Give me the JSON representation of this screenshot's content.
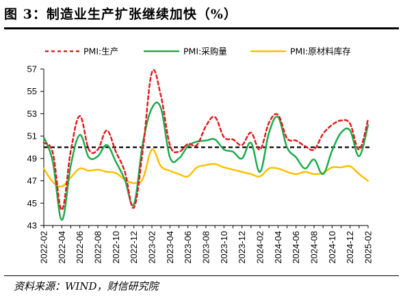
{
  "title": "图 3：制造业生产扩张继续加快（%）",
  "source": "资料来源：WIND，财信研究院",
  "chart_data": {
    "type": "line",
    "categories": [
      "2022-02",
      "2022-04",
      "2022-06",
      "2022-08",
      "2022-10",
      "2022-12",
      "2023-02",
      "2023-04",
      "2023-06",
      "2023-08",
      "2023-10",
      "2023-12",
      "2024-02",
      "2024-04",
      "2024-06",
      "2024-08",
      "2024-10",
      "2024-12",
      "2025-02"
    ],
    "x": [
      "2022-02",
      "2022-03",
      "2022-04",
      "2022-05",
      "2022-06",
      "2022-07",
      "2022-08",
      "2022-09",
      "2022-10",
      "2022-11",
      "2022-12",
      "2023-01",
      "2023-02",
      "2023-03",
      "2023-04",
      "2023-05",
      "2023-06",
      "2023-07",
      "2023-08",
      "2023-09",
      "2023-10",
      "2023-11",
      "2023-12",
      "2024-01",
      "2024-02",
      "2024-03",
      "2024-04",
      "2024-05",
      "2024-06",
      "2024-07",
      "2024-08",
      "2024-09",
      "2024-10",
      "2024-11",
      "2024-12",
      "2025-01",
      "2025-02"
    ],
    "series": [
      {
        "name": "PMI:生产",
        "color": "#e41a1c",
        "dash": "5,4",
        "values": [
          50.4,
          49.5,
          44.4,
          49.7,
          52.8,
          49.8,
          49.8,
          51.5,
          49.6,
          47.8,
          44.6,
          49.8,
          56.7,
          54.6,
          50.2,
          49.6,
          50.3,
          50.2,
          51.9,
          52.7,
          50.9,
          50.7,
          50.2,
          51.3,
          49.8,
          52.2,
          52.9,
          50.8,
          50.6,
          50.1,
          49.8,
          51.2,
          52.0,
          52.4,
          52.1,
          49.8,
          52.5
        ]
      },
      {
        "name": "PMI:采购量",
        "color": "#1aab4b",
        "dash": "",
        "values": [
          50.9,
          48.7,
          43.5,
          48.4,
          51.1,
          49.1,
          49.2,
          50.2,
          48.7,
          47.1,
          44.9,
          50.4,
          53.5,
          53.5,
          49.1,
          49.0,
          50.1,
          50.5,
          50.6,
          50.7,
          49.8,
          49.6,
          49.0,
          50.4,
          47.8,
          51.3,
          52.7,
          50.0,
          49.1,
          48.1,
          48.9,
          47.6,
          49.7,
          51.3,
          51.5,
          49.2,
          52.0
        ]
      },
      {
        "name": "PMI:原材料库存",
        "color": "#ffbf00",
        "dash": "",
        "values": [
          48.1,
          46.9,
          46.5,
          47.3,
          48.1,
          47.9,
          48.0,
          47.8,
          47.7,
          47.1,
          46.8,
          47.2,
          49.8,
          48.3,
          47.9,
          47.6,
          47.4,
          48.2,
          48.4,
          48.5,
          48.2,
          48.0,
          47.8,
          47.6,
          47.4,
          48.1,
          48.1,
          47.8,
          47.6,
          47.8,
          47.6,
          47.7,
          48.2,
          48.2,
          48.3,
          47.6,
          47.0
        ]
      }
    ],
    "reference_line": 50,
    "ylim": [
      43,
      57
    ],
    "yticks": [
      43,
      45,
      47,
      49,
      51,
      53,
      55,
      57
    ],
    "xlabel": "",
    "ylabel": "",
    "grid": false,
    "legend_position": "top"
  }
}
